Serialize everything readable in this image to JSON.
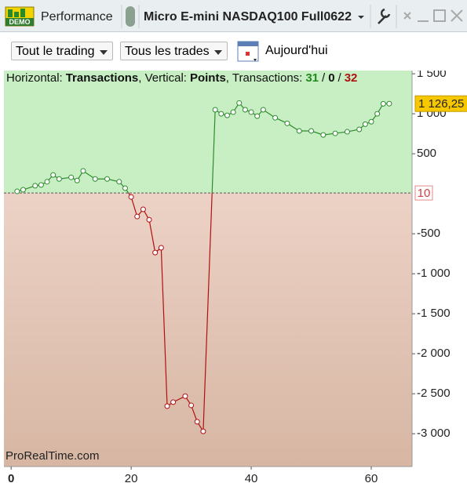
{
  "window": {
    "badge": "DEMO",
    "title": "Performance",
    "instrument": "Micro E-mini NASDAQ100 Full0622"
  },
  "toolbar": {
    "filter_trading": "Tout le trading",
    "filter_trades": "Tous les trades",
    "date": "Aujourd'hui"
  },
  "chart_data": {
    "type": "line",
    "info": {
      "h_label": "Horizontal:",
      "h_value": "Transactions",
      "v_label": ", Vertical:",
      "v_value": "Points",
      "t_label": ", Transactions:",
      "wins": 31,
      "sep1": "/",
      "even": 0,
      "sep2": "/",
      "losses": 32
    },
    "watermark": "ProRealTime.com",
    "x": [
      1,
      2,
      4,
      5,
      6,
      7,
      8,
      10,
      11,
      12,
      14,
      16,
      18,
      19,
      20,
      21,
      22,
      23,
      24,
      25,
      26,
      27,
      29,
      30,
      31,
      32,
      34,
      35,
      36,
      37,
      38,
      39,
      40,
      41,
      42,
      44,
      46,
      48,
      50,
      52,
      54,
      56,
      58,
      59,
      60,
      61,
      62,
      63
    ],
    "series": [
      {
        "name": "Points",
        "color": "#2e8b2e",
        "color_below": "#b01010",
        "values": [
          30,
          50,
          100,
          110,
          150,
          235,
          185,
          205,
          165,
          285,
          185,
          185,
          150,
          70,
          -40,
          -285,
          -195,
          -325,
          -735,
          -675,
          -2655,
          -2605,
          -2530,
          -2645,
          -2850,
          -2970,
          1050,
          1000,
          980,
          1020,
          1135,
          1050,
          1020,
          970,
          1050,
          950,
          880,
          785,
          785,
          735,
          755,
          775,
          805,
          870,
          900,
          1000,
          1125,
          1126.25
        ]
      }
    ],
    "reference": 10,
    "last_value": {
      "value": 1126.25,
      "label": "1 126,25"
    },
    "xlim": [
      -1.2,
      66.8
    ],
    "xticks": [
      0,
      20,
      40,
      60
    ],
    "ylim": [
      -3410,
      1540
    ],
    "yticks": [
      {
        "value": 1500,
        "label": "1 500"
      },
      {
        "value": 1000,
        "label": "1 000"
      },
      500,
      -500,
      {
        "value": -1000,
        "label": "-1 000"
      },
      {
        "value": -1500,
        "label": "-1 500"
      },
      {
        "value": -2000,
        "label": "-2 000"
      },
      {
        "value": -2500,
        "label": "-2 500"
      },
      {
        "value": -3000,
        "label": "-3 000"
      }
    ]
  }
}
